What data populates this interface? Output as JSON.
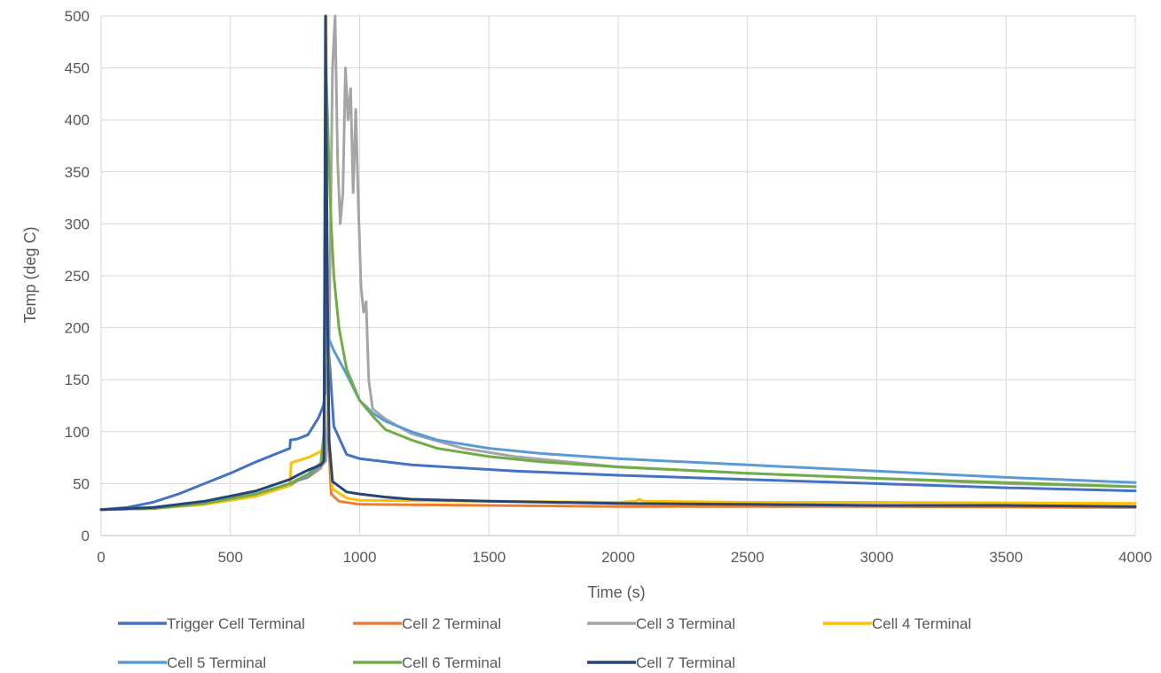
{
  "chart_data": {
    "type": "line",
    "title": "",
    "xlabel": "Time (s)",
    "ylabel": "Temp (deg C)",
    "xlim": [
      0,
      4000
    ],
    "ylim": [
      0,
      500
    ],
    "xticks": [
      0,
      500,
      1000,
      1500,
      2000,
      2500,
      3000,
      3500,
      4000
    ],
    "yticks": [
      0,
      50,
      100,
      150,
      200,
      250,
      300,
      350,
      400,
      450,
      500
    ],
    "grid": true,
    "legend_position": "bottom",
    "series": [
      {
        "name": "Trigger Cell Terminal",
        "color": "#4472C4",
        "points": [
          [
            0,
            25
          ],
          [
            100,
            27
          ],
          [
            200,
            32
          ],
          [
            300,
            40
          ],
          [
            400,
            50
          ],
          [
            500,
            60
          ],
          [
            600,
            71
          ],
          [
            700,
            81
          ],
          [
            730,
            84
          ],
          [
            732,
            92
          ],
          [
            760,
            93
          ],
          [
            800,
            97
          ],
          [
            840,
            113
          ],
          [
            860,
            125
          ],
          [
            870,
            145
          ],
          [
            880,
            180
          ],
          [
            900,
            105
          ],
          [
            950,
            78
          ],
          [
            1000,
            74
          ],
          [
            1100,
            71
          ],
          [
            1200,
            68
          ],
          [
            1400,
            65
          ],
          [
            1600,
            62
          ],
          [
            2000,
            58
          ],
          [
            2500,
            54
          ],
          [
            3000,
            50
          ],
          [
            3500,
            46
          ],
          [
            4000,
            43
          ]
        ]
      },
      {
        "name": "Cell 2 Terminal",
        "color": "#ED7D31",
        "points": [
          [
            0,
            25
          ],
          [
            200,
            26
          ],
          [
            400,
            30
          ],
          [
            600,
            38
          ],
          [
            730,
            48
          ],
          [
            760,
            53
          ],
          [
            800,
            56
          ],
          [
            850,
            65
          ],
          [
            862,
            75
          ],
          [
            870,
            500
          ],
          [
            878,
            100
          ],
          [
            890,
            40
          ],
          [
            920,
            33
          ],
          [
            1000,
            30
          ],
          [
            1500,
            29
          ],
          [
            2000,
            28
          ],
          [
            3000,
            28
          ],
          [
            4000,
            27
          ]
        ]
      },
      {
        "name": "Cell 3 Terminal",
        "color": "#A5A5A5",
        "points": [
          [
            0,
            25
          ],
          [
            200,
            26
          ],
          [
            400,
            31
          ],
          [
            600,
            40
          ],
          [
            730,
            50
          ],
          [
            760,
            54
          ],
          [
            800,
            58
          ],
          [
            850,
            66
          ],
          [
            870,
            72
          ],
          [
            880,
            150
          ],
          [
            895,
            450
          ],
          [
            905,
            500
          ],
          [
            915,
            360
          ],
          [
            925,
            300
          ],
          [
            935,
            330
          ],
          [
            945,
            450
          ],
          [
            955,
            400
          ],
          [
            965,
            430
          ],
          [
            975,
            330
          ],
          [
            985,
            410
          ],
          [
            995,
            320
          ],
          [
            1005,
            240
          ],
          [
            1015,
            215
          ],
          [
            1025,
            225
          ],
          [
            1035,
            150
          ],
          [
            1050,
            122
          ],
          [
            1100,
            112
          ],
          [
            1200,
            98
          ],
          [
            1400,
            84
          ],
          [
            1600,
            76
          ],
          [
            2000,
            66
          ],
          [
            2500,
            60
          ],
          [
            3000,
            55
          ],
          [
            3500,
            50
          ],
          [
            4000,
            47
          ]
        ]
      },
      {
        "name": "Cell 4 Terminal",
        "color": "#FFC000",
        "points": [
          [
            0,
            25
          ],
          [
            200,
            26
          ],
          [
            400,
            30
          ],
          [
            600,
            38
          ],
          [
            730,
            48
          ],
          [
            735,
            70
          ],
          [
            760,
            72
          ],
          [
            800,
            75
          ],
          [
            850,
            81
          ],
          [
            862,
            85
          ],
          [
            870,
            500
          ],
          [
            878,
            110
          ],
          [
            895,
            45
          ],
          [
            950,
            36
          ],
          [
            1000,
            34
          ],
          [
            1500,
            33
          ],
          [
            2000,
            32
          ],
          [
            2070,
            33
          ],
          [
            2080,
            35
          ],
          [
            2100,
            33
          ],
          [
            2500,
            32
          ],
          [
            3000,
            32
          ],
          [
            4000,
            31
          ]
        ]
      },
      {
        "name": "Cell 5 Terminal",
        "color": "#5B9BD5",
        "points": [
          [
            0,
            25
          ],
          [
            200,
            26
          ],
          [
            400,
            31
          ],
          [
            600,
            40
          ],
          [
            730,
            50
          ],
          [
            760,
            53
          ],
          [
            800,
            57
          ],
          [
            850,
            68
          ],
          [
            862,
            90
          ],
          [
            870,
            260
          ],
          [
            880,
            190
          ],
          [
            900,
            178
          ],
          [
            950,
            155
          ],
          [
            1000,
            130
          ],
          [
            1050,
            118
          ],
          [
            1100,
            110
          ],
          [
            1200,
            100
          ],
          [
            1300,
            92
          ],
          [
            1500,
            84
          ],
          [
            1700,
            79
          ],
          [
            2000,
            74
          ],
          [
            2500,
            68
          ],
          [
            3000,
            62
          ],
          [
            3500,
            56
          ],
          [
            4000,
            51
          ]
        ]
      },
      {
        "name": "Cell 6 Terminal",
        "color": "#70AD47",
        "points": [
          [
            0,
            25
          ],
          [
            200,
            26
          ],
          [
            400,
            31
          ],
          [
            600,
            40
          ],
          [
            730,
            50
          ],
          [
            760,
            54
          ],
          [
            800,
            59
          ],
          [
            850,
            70
          ],
          [
            862,
            100
          ],
          [
            870,
            450
          ],
          [
            880,
            370
          ],
          [
            890,
            300
          ],
          [
            900,
            250
          ],
          [
            920,
            200
          ],
          [
            950,
            160
          ],
          [
            1000,
            130
          ],
          [
            1050,
            115
          ],
          [
            1100,
            102
          ],
          [
            1200,
            92
          ],
          [
            1300,
            84
          ],
          [
            1500,
            76
          ],
          [
            1700,
            71
          ],
          [
            2000,
            66
          ],
          [
            2500,
            60
          ],
          [
            3000,
            55
          ],
          [
            3500,
            51
          ],
          [
            4000,
            47
          ]
        ]
      },
      {
        "name": "Cell 7 Terminal",
        "color": "#264478",
        "points": [
          [
            0,
            25
          ],
          [
            200,
            27
          ],
          [
            400,
            33
          ],
          [
            600,
            43
          ],
          [
            730,
            54
          ],
          [
            760,
            58
          ],
          [
            800,
            63
          ],
          [
            850,
            68
          ],
          [
            862,
            72
          ],
          [
            868,
            500
          ],
          [
            876,
            200
          ],
          [
            882,
            90
          ],
          [
            895,
            52
          ],
          [
            950,
            42
          ],
          [
            1000,
            40
          ],
          [
            1100,
            37
          ],
          [
            1200,
            35
          ],
          [
            1500,
            33
          ],
          [
            2000,
            31
          ],
          [
            2500,
            30
          ],
          [
            3000,
            29
          ],
          [
            3500,
            29
          ],
          [
            4000,
            28
          ]
        ]
      }
    ]
  }
}
